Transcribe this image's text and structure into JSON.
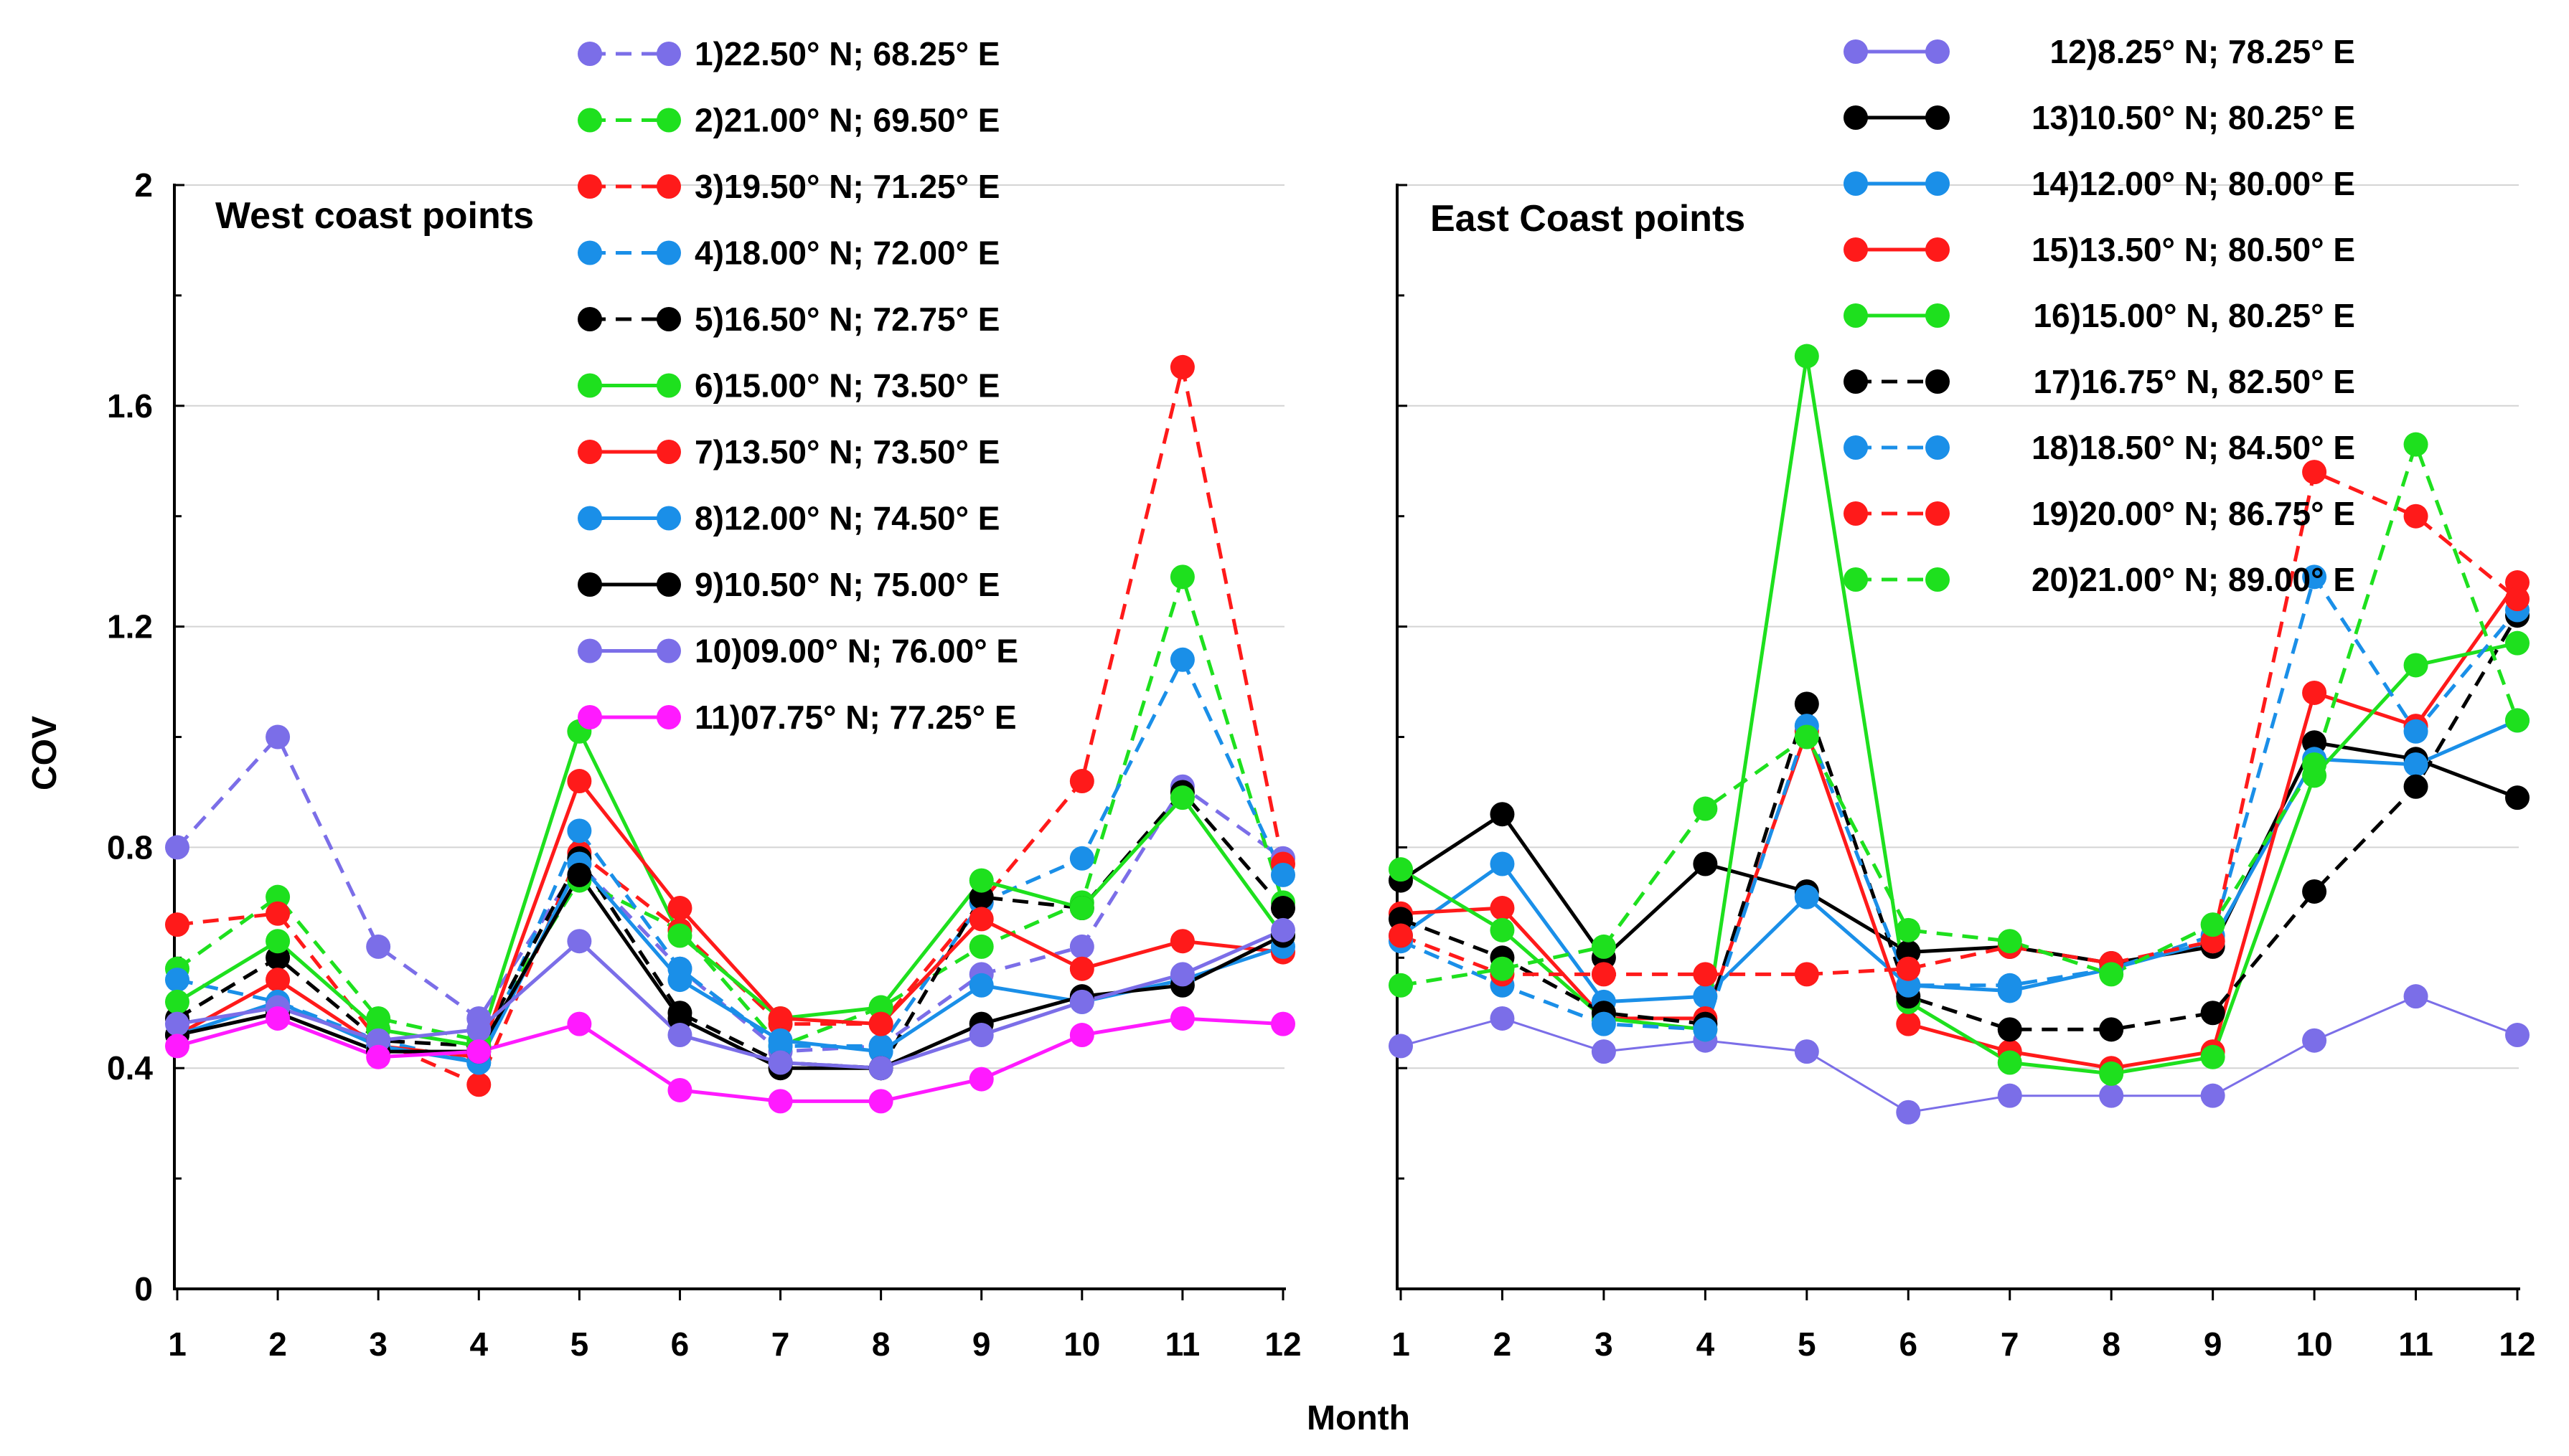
{
  "chart_data": {
    "type": "line",
    "xlabel": "Month",
    "ylabel": "COV",
    "ylim": [
      0,
      2
    ],
    "yticks": [
      "0",
      "0.4",
      "0.8",
      "1.2",
      "1.6",
      "2"
    ],
    "categories": [
      "1",
      "2",
      "3",
      "4",
      "5",
      "6",
      "7",
      "8",
      "9",
      "10",
      "11",
      "12"
    ],
    "grid": true,
    "panels": [
      {
        "title": "West coast points",
        "legend_position": "top-right",
        "series": [
          {
            "name": "1)22.50° N; 68.25° E",
            "color": "#7b6ee8",
            "dash": true,
            "values": [
              0.8,
              1.0,
              0.62,
              0.49,
              0.77,
              0.58,
              0.43,
              0.44,
              0.57,
              0.62,
              0.91,
              0.78
            ]
          },
          {
            "name": "2)21.00° N; 69.50° E",
            "color": "#1ee01e",
            "dash": true,
            "values": [
              0.58,
              0.71,
              0.49,
              0.45,
              0.74,
              0.65,
              0.44,
              0.51,
              0.62,
              0.7,
              1.29,
              0.7
            ]
          },
          {
            "name": "3)19.50° N; 71.25° E",
            "color": "#ff1a1a",
            "dash": true,
            "values": [
              0.66,
              0.68,
              0.45,
              0.37,
              0.79,
              0.65,
              0.48,
              0.48,
              0.7,
              0.92,
              1.67,
              0.77
            ]
          },
          {
            "name": "4)18.00° N; 72.00° E",
            "color": "#1a8fe8",
            "dash": true,
            "values": [
              0.56,
              0.52,
              0.45,
              0.41,
              0.83,
              0.58,
              0.44,
              0.44,
              0.7,
              0.78,
              1.14,
              0.75
            ]
          },
          {
            "name": "5)16.50° N; 72.75° E",
            "color": "#000000",
            "dash": true,
            "values": [
              0.49,
              0.6,
              0.45,
              0.44,
              0.78,
              0.5,
              0.41,
              0.4,
              0.71,
              0.69,
              0.9,
              0.69
            ]
          },
          {
            "name": "6)15.00° N; 73.50° E",
            "color": "#1ee01e",
            "dash": false,
            "values": [
              0.52,
              0.63,
              0.47,
              0.44,
              1.01,
              0.64,
              0.49,
              0.51,
              0.74,
              0.69,
              0.89,
              0.64
            ]
          },
          {
            "name": "7)13.50° N; 73.50° E",
            "color": "#ff1a1a",
            "dash": false,
            "values": [
              0.46,
              0.56,
              0.44,
              0.42,
              0.92,
              0.69,
              0.49,
              0.48,
              0.67,
              0.58,
              0.63,
              0.61
            ]
          },
          {
            "name": "8)12.00° N; 74.50° E",
            "color": "#1a8fe8",
            "dash": false,
            "values": [
              0.46,
              0.52,
              0.44,
              0.41,
              0.77,
              0.56,
              0.45,
              0.43,
              0.55,
              0.52,
              0.56,
              0.62
            ]
          },
          {
            "name": "9)10.50° N; 75.00° E",
            "color": "#000000",
            "dash": false,
            "values": [
              0.46,
              0.5,
              0.43,
              0.43,
              0.75,
              0.49,
              0.4,
              0.4,
              0.48,
              0.53,
              0.55,
              0.64
            ]
          },
          {
            "name": "10)09.00° N; 76.00° E",
            "color": "#7b6ee8",
            "dash": false,
            "values": [
              0.48,
              0.51,
              0.45,
              0.47,
              0.63,
              0.46,
              0.41,
              0.4,
              0.46,
              0.52,
              0.57,
              0.65
            ]
          },
          {
            "name": "11)07.75° N; 77.25° E",
            "color": "#ff1aff",
            "dash": false,
            "values": [
              0.44,
              0.49,
              0.42,
              0.43,
              0.48,
              0.36,
              0.34,
              0.34,
              0.38,
              0.46,
              0.49,
              0.48
            ]
          }
        ]
      },
      {
        "title": "East Coast points",
        "legend_position": "top-right",
        "series": [
          {
            "name": "12)8.25° N; 78.25° E",
            "color": "#7b6ee8",
            "dash": false,
            "values": [
              0.44,
              0.49,
              0.43,
              0.45,
              0.43,
              0.32,
              0.35,
              0.35,
              0.35,
              0.45,
              0.53,
              0.46
            ]
          },
          {
            "name": "13)10.50° N; 80.25° E",
            "color": "#000000",
            "dash": false,
            "values": [
              0.74,
              0.86,
              0.6,
              0.77,
              0.72,
              0.61,
              0.62,
              0.59,
              0.62,
              0.99,
              0.96,
              0.89
            ]
          },
          {
            "name": "14)12.00° N; 80.00° E",
            "color": "#1a8fe8",
            "dash": false,
            "values": [
              0.64,
              0.77,
              0.52,
              0.53,
              0.71,
              0.55,
              0.54,
              0.58,
              0.63,
              0.96,
              0.95,
              1.03
            ]
          },
          {
            "name": "15)13.50° N; 80.50° E",
            "color": "#ff1a1a",
            "dash": false,
            "values": [
              0.68,
              0.69,
              0.49,
              0.49,
              1.01,
              0.48,
              0.43,
              0.4,
              0.43,
              1.08,
              1.02,
              1.28
            ]
          },
          {
            "name": "16)15.00° N, 80.25° E",
            "color": "#1ee01e",
            "dash": false,
            "values": [
              0.76,
              0.65,
              0.49,
              0.47,
              1.69,
              0.52,
              0.41,
              0.39,
              0.42,
              0.93,
              1.13,
              1.17
            ]
          },
          {
            "name": "17)16.75° N, 82.50° E",
            "color": "#000000",
            "dash": true,
            "values": [
              0.67,
              0.6,
              0.5,
              0.48,
              1.06,
              0.53,
              0.47,
              0.47,
              0.5,
              0.72,
              0.91,
              1.22
            ]
          },
          {
            "name": "18)18.50° N; 84.50° E",
            "color": "#1a8fe8",
            "dash": true,
            "values": [
              0.63,
              0.55,
              0.48,
              0.47,
              1.02,
              0.55,
              0.55,
              0.58,
              0.64,
              1.29,
              1.01,
              1.23
            ]
          },
          {
            "name": "19)20.00° N; 86.75° E",
            "color": "#ff1a1a",
            "dash": true,
            "values": [
              0.64,
              0.57,
              0.57,
              0.57,
              0.57,
              0.58,
              0.62,
              0.59,
              0.63,
              1.48,
              1.4,
              1.25
            ]
          },
          {
            "name": "20)21.00° N; 89.00° E",
            "color": "#1ee01e",
            "dash": true,
            "values": [
              0.55,
              0.58,
              0.62,
              0.87,
              1.0,
              0.65,
              0.63,
              0.57,
              0.66,
              0.95,
              1.53,
              1.03
            ]
          }
        ]
      }
    ]
  }
}
